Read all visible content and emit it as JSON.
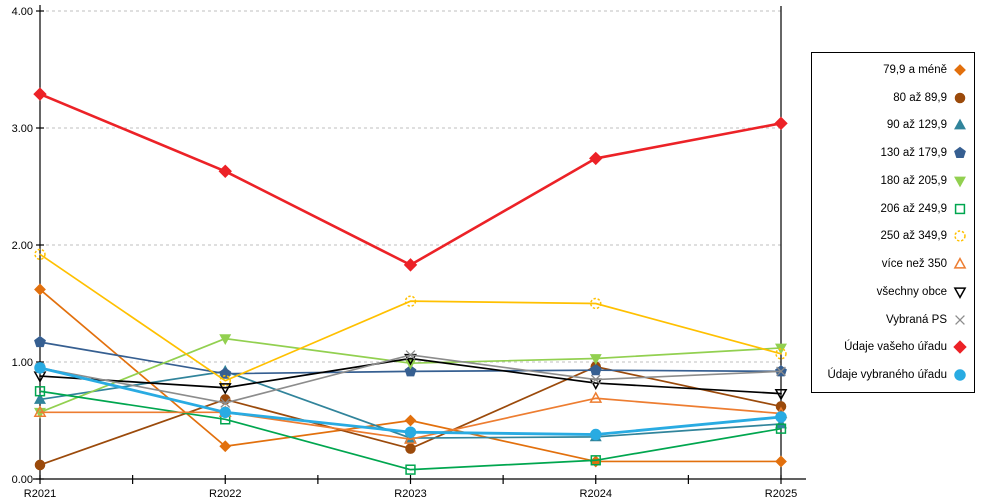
{
  "chart_data": {
    "type": "line",
    "title": "",
    "categories": [
      "R2021",
      "R2022",
      "R2023",
      "R2024",
      "R2025"
    ],
    "y_axis": {
      "ticks": [
        "0.00",
        "1.00",
        "2.00",
        "3.00",
        "4.00"
      ],
      "min": 0,
      "max": 4,
      "grid": "dashed-horizontal"
    },
    "x_axis": {
      "minor_ticks_between_categories": true
    },
    "legend_position": "right-box",
    "series": [
      {
        "name": "79,9 a méně",
        "marker": "diamond",
        "fill": "filled",
        "color": "#E2700D",
        "size": 5.2,
        "line_width": 1.7,
        "values": [
          1.62,
          0.28,
          0.5,
          0.15,
          0.15
        ]
      },
      {
        "name": "80 až 89,9",
        "marker": "circle",
        "fill": "filled",
        "color": "#9B4A0B",
        "size": 5.2,
        "line_width": 1.7,
        "values": [
          0.12,
          0.68,
          0.26,
          0.96,
          0.62
        ]
      },
      {
        "name": "90 až 129,9",
        "marker": "triangle-up",
        "fill": "filled",
        "color": "#31849B",
        "size": 5.4,
        "line_width": 1.7,
        "values": [
          0.68,
          0.92,
          0.35,
          0.36,
          0.47
        ]
      },
      {
        "name": "130 až 179,9",
        "marker": "pentagon",
        "fill": "filled",
        "color": "#365F91",
        "size": 5.6,
        "line_width": 1.7,
        "values": [
          1.17,
          0.9,
          0.92,
          0.93,
          0.92
        ]
      },
      {
        "name": "180 až 205,9",
        "marker": "triangle-down",
        "fill": "filled",
        "color": "#92D050",
        "size": 5.4,
        "line_width": 1.7,
        "values": [
          0.57,
          1.2,
          0.99,
          1.03,
          1.12
        ]
      },
      {
        "name": "206 až 249,9",
        "marker": "square",
        "fill": "open",
        "color": "#00A64F",
        "size": 5.2,
        "line_width": 1.7,
        "values": [
          0.75,
          0.51,
          0.08,
          0.16,
          0.43
        ]
      },
      {
        "name": "250 až 349,9",
        "marker": "circle-dashed",
        "fill": "open",
        "color": "#FFC000",
        "size": 5.4,
        "line_width": 1.7,
        "values": [
          1.92,
          0.84,
          1.52,
          1.5,
          1.07
        ]
      },
      {
        "name": "více než 350",
        "marker": "triangle-up",
        "fill": "open",
        "color": "#ED7D31",
        "size": 5.4,
        "line_width": 1.7,
        "values": [
          0.57,
          0.57,
          0.34,
          0.69,
          0.56
        ]
      },
      {
        "name": "všechny obce",
        "marker": "triangle-down",
        "fill": "open",
        "color": "#000000",
        "size": 5.4,
        "line_width": 1.7,
        "values": [
          0.88,
          0.78,
          1.03,
          0.82,
          0.73
        ]
      },
      {
        "name": "Vybraná PS",
        "marker": "x",
        "fill": "open",
        "color": "#8C8C8C",
        "size": 5.2,
        "line_width": 1.6,
        "values": [
          0.95,
          0.65,
          1.06,
          0.85,
          0.92
        ]
      },
      {
        "name": "Údaje vašeho úřadu",
        "marker": "diamond",
        "fill": "filled",
        "color": "#EC2227",
        "size": 6.0,
        "line_width": 2.6,
        "values": [
          3.29,
          2.63,
          1.83,
          2.74,
          3.04
        ]
      },
      {
        "name": "Údaje vybraného úřadu",
        "marker": "circle",
        "fill": "filled",
        "color": "#29ABE2",
        "size": 5.7,
        "line_width": 2.8,
        "values": [
          0.95,
          0.57,
          0.4,
          0.38,
          0.53
        ]
      }
    ]
  },
  "colors": {
    "background": "#FFFFFF",
    "grid": "#BFBFBF",
    "axis": "#000000",
    "legend_border": "#000000"
  }
}
